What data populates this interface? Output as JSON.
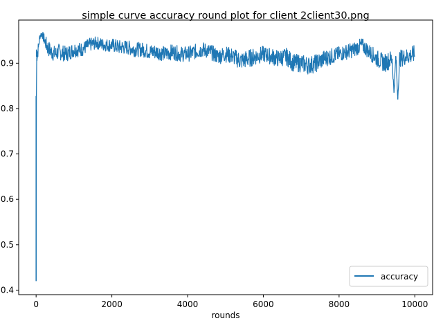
{
  "chart_data": {
    "type": "line",
    "title": "simple curve accuracy round plot for client 2client30.png",
    "xlabel": "rounds",
    "ylabel": "",
    "xlim": [
      -460,
      10470
    ],
    "ylim": [
      0.39,
      0.995
    ],
    "x_ticks": [
      0,
      2000,
      4000,
      6000,
      8000,
      10000
    ],
    "x_tick_labels": [
      "0",
      "2000",
      "4000",
      "6000",
      "8000",
      "10000"
    ],
    "y_ticks": [
      0.4,
      0.5,
      0.6,
      0.7,
      0.8,
      0.9
    ],
    "y_tick_labels": [
      "0.4",
      "0.5",
      "0.6",
      "0.7",
      "0.8",
      "0.9"
    ],
    "grid": false,
    "legend_position": "lower-right",
    "series": [
      {
        "name": "accuracy",
        "color": "#1f77b4",
        "x": [
          0,
          10,
          20,
          40,
          60,
          100,
          150,
          200,
          300,
          400,
          500,
          600,
          800,
          1000,
          1200,
          1400,
          1600,
          1800,
          2000,
          2200,
          2400,
          2600,
          2800,
          3000,
          3200,
          3400,
          3600,
          3800,
          4000,
          4200,
          4400,
          4600,
          4800,
          5000,
          5200,
          5400,
          5600,
          5800,
          6000,
          6200,
          6400,
          6600,
          6800,
          7000,
          7200,
          7400,
          7600,
          7800,
          8000,
          8200,
          8400,
          8600,
          8800,
          9000,
          9200,
          9300,
          9400,
          9450,
          9500,
          9550,
          9600,
          9800,
          10000
        ],
        "y": [
          0.42,
          0.93,
          0.91,
          0.92,
          0.935,
          0.96,
          0.965,
          0.955,
          0.935,
          0.925,
          0.92,
          0.925,
          0.92,
          0.93,
          0.93,
          0.94,
          0.945,
          0.94,
          0.94,
          0.935,
          0.935,
          0.93,
          0.93,
          0.925,
          0.925,
          0.92,
          0.925,
          0.92,
          0.92,
          0.925,
          0.93,
          0.925,
          0.915,
          0.92,
          0.915,
          0.905,
          0.91,
          0.915,
          0.92,
          0.915,
          0.91,
          0.915,
          0.9,
          0.9,
          0.895,
          0.9,
          0.91,
          0.915,
          0.92,
          0.925,
          0.93,
          0.94,
          0.925,
          0.91,
          0.9,
          0.905,
          0.91,
          0.835,
          0.915,
          0.82,
          0.91,
          0.915,
          0.92
        ],
        "band": [
          0.0,
          0.006,
          0.012,
          0.014,
          0.014,
          0.008,
          0.006,
          0.012,
          0.018,
          0.018,
          0.018,
          0.018,
          0.017,
          0.017,
          0.016,
          0.015,
          0.014,
          0.014,
          0.015,
          0.016,
          0.016,
          0.016,
          0.016,
          0.017,
          0.017,
          0.017,
          0.017,
          0.017,
          0.017,
          0.017,
          0.017,
          0.017,
          0.018,
          0.018,
          0.018,
          0.02,
          0.02,
          0.019,
          0.018,
          0.018,
          0.019,
          0.019,
          0.02,
          0.02,
          0.02,
          0.02,
          0.019,
          0.018,
          0.017,
          0.017,
          0.017,
          0.016,
          0.017,
          0.019,
          0.02,
          0.02,
          0.02,
          0.0,
          0.02,
          0.0,
          0.019,
          0.018,
          0.02
        ]
      }
    ]
  }
}
